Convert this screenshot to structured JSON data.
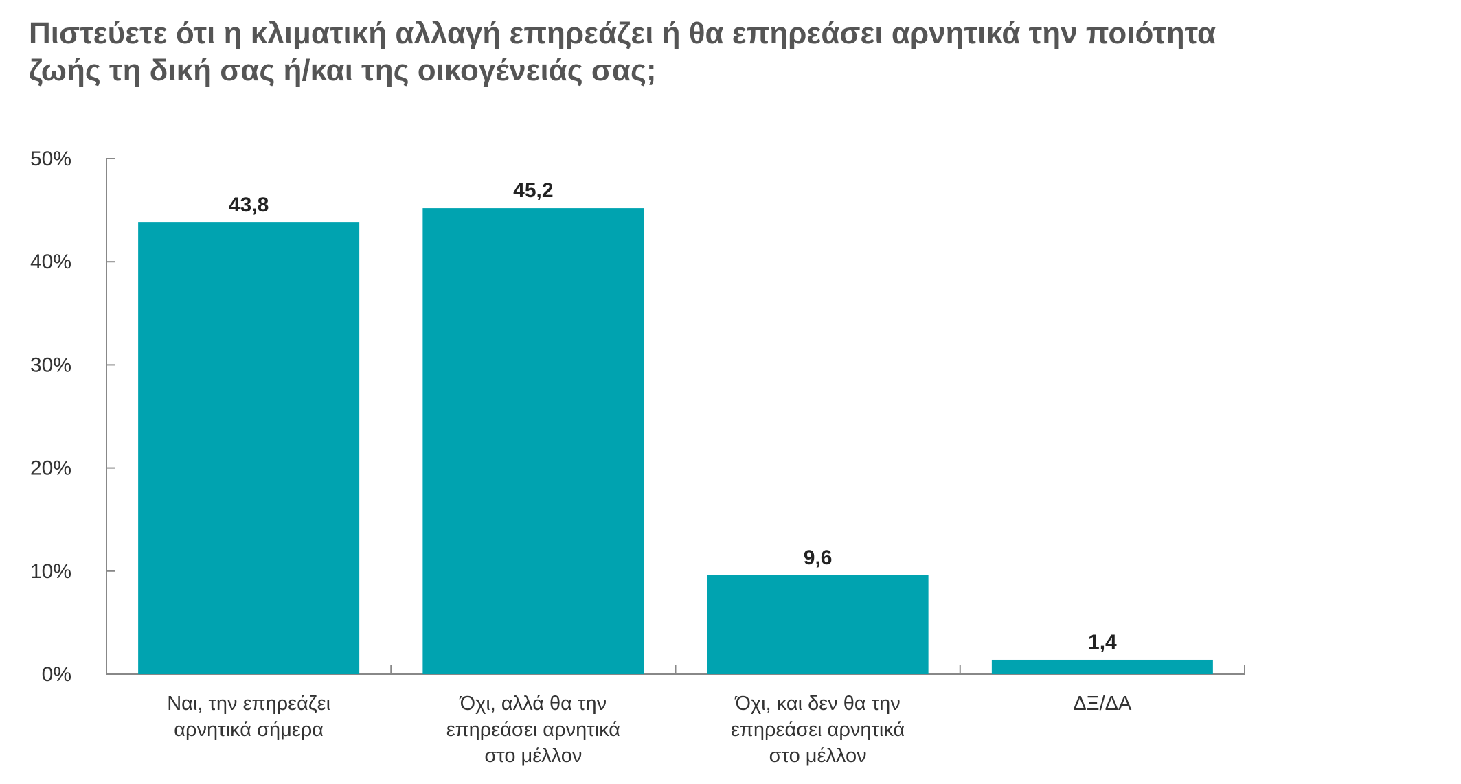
{
  "title_lines": [
    "Πιστεύετε ότι η κλιματική αλλαγή επηρεάζει ή θα επηρεάσει αρνητικά την ποιότητα",
    "ζωής τη δική σας ή/και της οικογένειάς σας;"
  ],
  "colors": {
    "bar": "#00A3B0",
    "axis": "#888888",
    "title": "#555555"
  },
  "chart_data": {
    "type": "bar",
    "title": "Πιστεύετε ότι η κλιματική αλλαγή επηρεάζει ή θα επηρεάσει αρνητικά την ποιότητα ζωής τη δική σας ή/και της οικογένειάς σας;",
    "categories": [
      [
        "Ναι, την επηρεάζει",
        "αρνητικά σήμερα"
      ],
      [
        "Όχι, αλλά θα την",
        "επηρεάσει αρνητικά",
        "στο μέλλον"
      ],
      [
        "Όχι, και δεν θα την",
        "επηρεάσει αρνητικά",
        "στο μέλλον"
      ],
      [
        "ΔΞ/ΔΑ"
      ]
    ],
    "values": [
      43.8,
      45.2,
      9.6,
      1.4
    ],
    "data_labels": [
      "43,8",
      "45,2",
      "9,6",
      "1,4"
    ],
    "y_ticks": [
      0,
      10,
      20,
      30,
      40,
      50
    ],
    "y_tick_labels": [
      "0%",
      "10%",
      "20%",
      "30%",
      "40%",
      "50%"
    ],
    "ylim": [
      0,
      50
    ],
    "xlabel": "",
    "ylabel": "",
    "grid": false,
    "legend": "none"
  }
}
